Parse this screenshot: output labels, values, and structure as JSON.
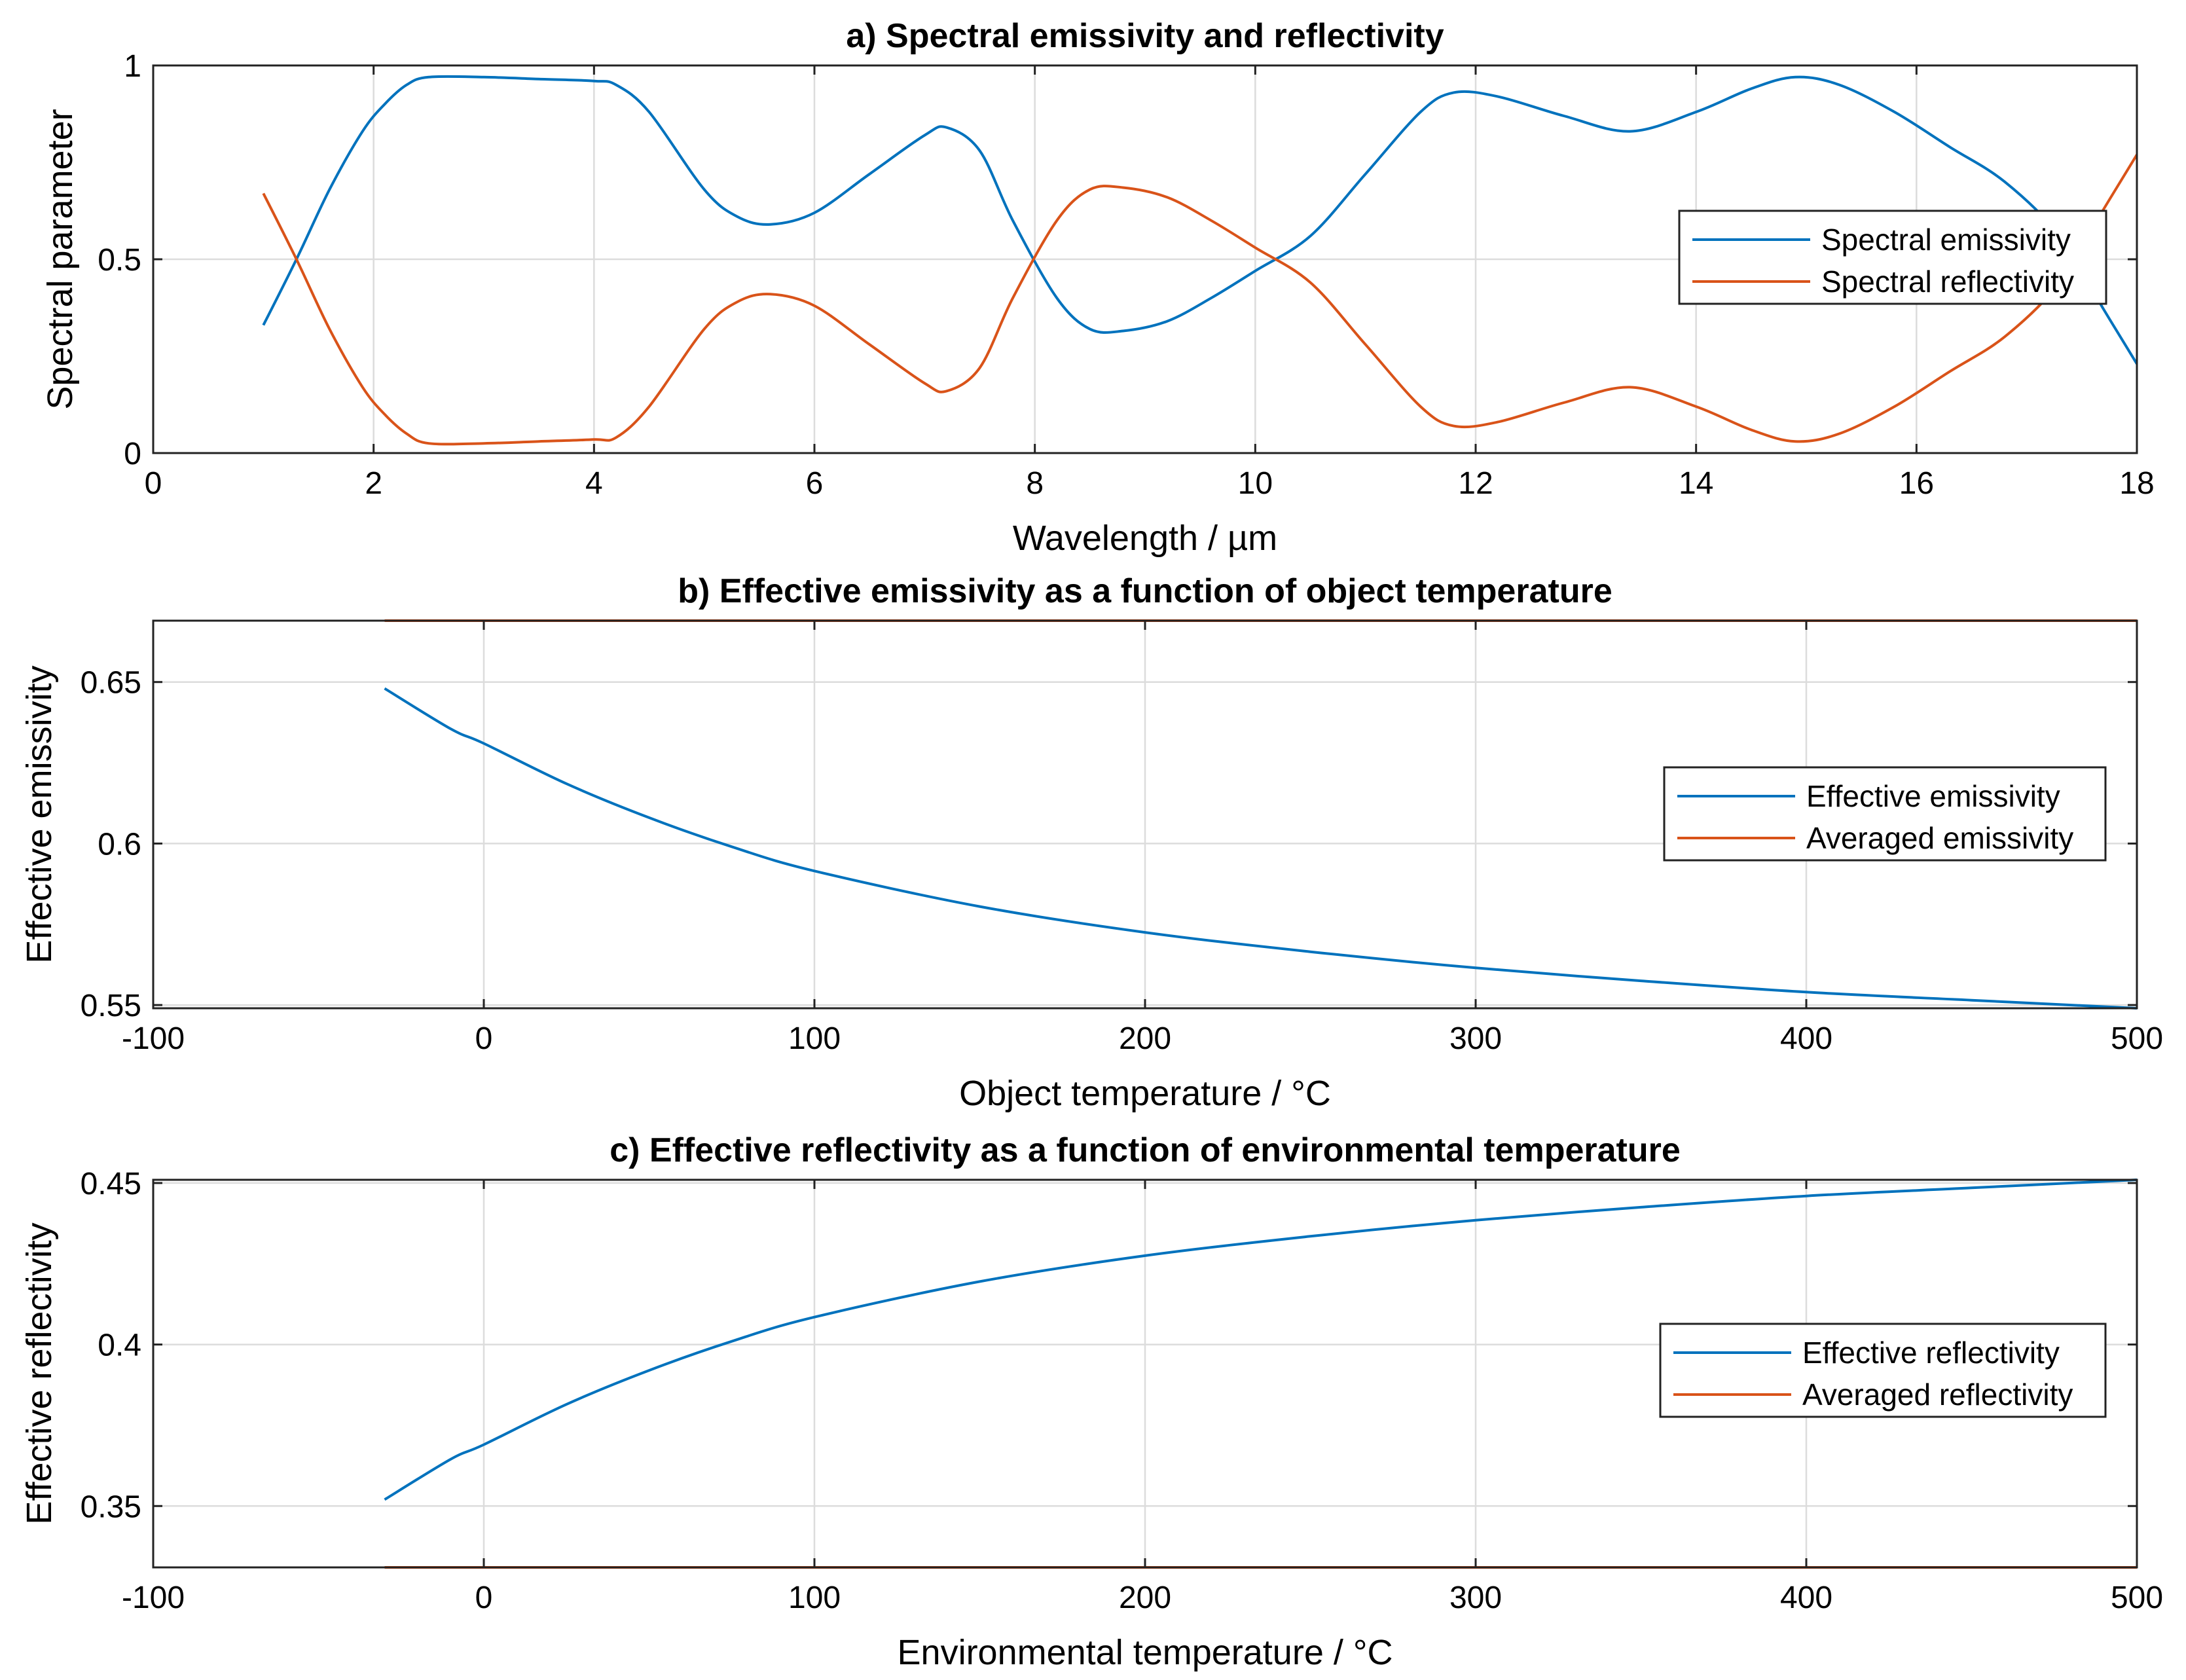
{
  "chart_data": [
    {
      "type": "line",
      "title": "a) Spectral emissivity and reflectivity",
      "xlabel": "Wavelength / µm",
      "ylabel": "Spectral parameter",
      "xlim": [
        0,
        18
      ],
      "ylim": [
        0,
        1
      ],
      "xticks": [
        0,
        2,
        4,
        6,
        8,
        10,
        12,
        14,
        16,
        18
      ],
      "xtick_labels": [
        "0",
        "2",
        "4",
        "6",
        "8",
        "10",
        "12",
        "14",
        "16",
        "18"
      ],
      "yticks": [
        0,
        0.5,
        1
      ],
      "ytick_labels": [
        "0",
        "0.5",
        "1"
      ],
      "grid": true,
      "legend_position": "right",
      "series": [
        {
          "name": "Spectral emissivity",
          "color": "#0072BD",
          "x": [
            1.0,
            1.3,
            1.6,
            1.9,
            2.1,
            2.3,
            2.5,
            3.0,
            3.5,
            4.0,
            4.2,
            4.5,
            5.0,
            5.3,
            5.6,
            6.0,
            6.5,
            7.0,
            7.2,
            7.5,
            7.8,
            8.2,
            8.5,
            8.8,
            9.2,
            9.6,
            10.0,
            10.5,
            11.0,
            11.5,
            11.8,
            12.2,
            12.8,
            13.4,
            14.0,
            14.5,
            14.9,
            15.3,
            15.8,
            16.3,
            16.8,
            17.3,
            17.7,
            18.0
          ],
          "y": [
            0.33,
            0.5,
            0.68,
            0.83,
            0.9,
            0.95,
            0.97,
            0.97,
            0.965,
            0.96,
            0.95,
            0.88,
            0.68,
            0.61,
            0.59,
            0.62,
            0.72,
            0.82,
            0.84,
            0.78,
            0.6,
            0.4,
            0.32,
            0.315,
            0.34,
            0.4,
            0.47,
            0.56,
            0.72,
            0.88,
            0.93,
            0.92,
            0.87,
            0.83,
            0.88,
            0.94,
            0.97,
            0.95,
            0.88,
            0.79,
            0.7,
            0.56,
            0.37,
            0.23
          ]
        },
        {
          "name": "Spectral reflectivity",
          "color": "#D95319",
          "x": [
            1.0,
            1.3,
            1.6,
            1.9,
            2.1,
            2.3,
            2.5,
            3.0,
            3.5,
            4.0,
            4.2,
            4.5,
            5.0,
            5.3,
            5.6,
            6.0,
            6.5,
            7.0,
            7.2,
            7.5,
            7.8,
            8.2,
            8.5,
            8.8,
            9.2,
            9.6,
            10.0,
            10.5,
            11.0,
            11.5,
            11.8,
            12.2,
            12.8,
            13.4,
            14.0,
            14.5,
            14.9,
            15.3,
            15.8,
            16.3,
            16.8,
            17.3,
            17.7,
            18.0
          ],
          "y": [
            0.67,
            0.5,
            0.32,
            0.17,
            0.1,
            0.05,
            0.025,
            0.025,
            0.03,
            0.035,
            0.04,
            0.12,
            0.32,
            0.39,
            0.41,
            0.38,
            0.28,
            0.18,
            0.16,
            0.22,
            0.4,
            0.6,
            0.68,
            0.685,
            0.66,
            0.6,
            0.53,
            0.44,
            0.28,
            0.12,
            0.07,
            0.08,
            0.13,
            0.17,
            0.12,
            0.06,
            0.03,
            0.05,
            0.12,
            0.21,
            0.3,
            0.44,
            0.63,
            0.77
          ]
        }
      ]
    },
    {
      "type": "line",
      "title": "b) Effective emissivity as a function of object temperature",
      "xlabel": "Object temperature / °C",
      "ylabel": "Effective emissivity",
      "xlim": [
        -100,
        500
      ],
      "ylim": [
        0.549,
        0.669
      ],
      "xticks": [
        -100,
        0,
        100,
        200,
        300,
        400,
        500
      ],
      "xtick_labels": [
        "-100",
        "0",
        "100",
        "200",
        "300",
        "400",
        "500"
      ],
      "yticks": [
        0.55,
        0.6,
        0.65
      ],
      "ytick_labels": [
        "0.55",
        "0.6",
        "0.65"
      ],
      "grid": true,
      "legend_position": "right",
      "series": [
        {
          "name": "Effective emissivity",
          "color": "#0072BD",
          "x": [
            -30,
            -10,
            0,
            25,
            50,
            75,
            100,
            150,
            200,
            250,
            300,
            350,
            400,
            450,
            500
          ],
          "y": [
            0.648,
            0.6355,
            0.631,
            0.6185,
            0.608,
            0.599,
            0.5915,
            0.5805,
            0.5725,
            0.5665,
            0.5615,
            0.5575,
            0.554,
            0.5515,
            0.549
          ]
        },
        {
          "name": "Averaged emissivity",
          "color": "#D95319",
          "x": [
            -30,
            500
          ],
          "y": [
            0.669,
            0.669
          ]
        }
      ]
    },
    {
      "type": "line",
      "title": "c) Effective reflectivity as a function of environmental temperature",
      "xlabel": "Environmental temperature / °C",
      "ylabel": "Effective reflectivity",
      "xlim": [
        -100,
        500
      ],
      "ylim": [
        0.331,
        0.451
      ],
      "xticks": [
        -100,
        0,
        100,
        200,
        300,
        400,
        500
      ],
      "xtick_labels": [
        "-100",
        "0",
        "100",
        "200",
        "300",
        "400",
        "500"
      ],
      "yticks": [
        0.35,
        0.4,
        0.45
      ],
      "ytick_labels": [
        "0.35",
        "0.4",
        "0.45"
      ],
      "grid": true,
      "legend_position": "right",
      "series": [
        {
          "name": "Effective reflectivity",
          "color": "#0072BD",
          "x": [
            -30,
            -10,
            0,
            25,
            50,
            75,
            100,
            150,
            200,
            250,
            300,
            350,
            400,
            450,
            500
          ],
          "y": [
            0.352,
            0.3645,
            0.369,
            0.3815,
            0.392,
            0.401,
            0.4085,
            0.4195,
            0.4275,
            0.4335,
            0.4385,
            0.4425,
            0.446,
            0.4485,
            0.451
          ]
        },
        {
          "name": "Averaged reflectivity",
          "color": "#D95319",
          "x": [
            -30,
            500
          ],
          "y": [
            0.331,
            0.331
          ]
        }
      ]
    }
  ]
}
